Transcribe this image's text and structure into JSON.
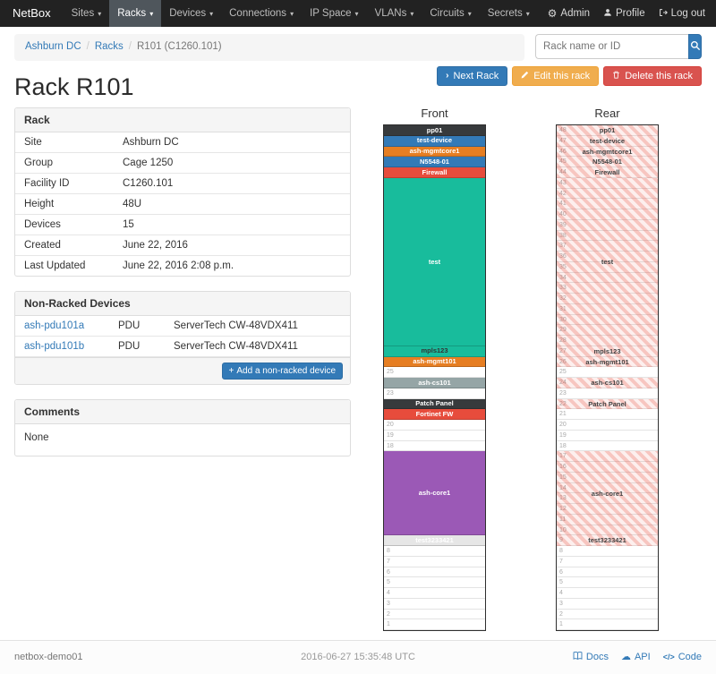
{
  "navbar": {
    "brand": "NetBox",
    "items": [
      {
        "label": "Sites",
        "active": false
      },
      {
        "label": "Racks",
        "active": true
      },
      {
        "label": "Devices",
        "active": false
      },
      {
        "label": "Connections",
        "active": false
      },
      {
        "label": "IP Space",
        "active": false
      },
      {
        "label": "VLANs",
        "active": false
      },
      {
        "label": "Circuits",
        "active": false
      },
      {
        "label": "Secrets",
        "active": false
      }
    ],
    "admin_label": "Admin",
    "profile_label": "Profile",
    "logout_label": "Log out"
  },
  "breadcrumb": {
    "items": [
      {
        "label": "Ashburn DC",
        "link": true
      },
      {
        "label": "Racks",
        "link": true
      },
      {
        "label": "R101 (C1260.101)",
        "link": false
      }
    ]
  },
  "search": {
    "placeholder": "Rack name or ID"
  },
  "actions": {
    "next_rack": "Next Rack",
    "edit": "Edit this rack",
    "delete": "Delete this rack"
  },
  "page_title": "Rack R101",
  "rack_panel": {
    "title": "Rack",
    "rows": [
      {
        "label": "Site",
        "value": "Ashburn DC",
        "link": true
      },
      {
        "label": "Group",
        "value": "Cage 1250",
        "link": true
      },
      {
        "label": "Facility ID",
        "value": "C1260.101",
        "link": false
      },
      {
        "label": "Height",
        "value": "48U",
        "link": false
      },
      {
        "label": "Devices",
        "value": "15",
        "link": true
      },
      {
        "label": "Created",
        "value": "June 22, 2016",
        "link": false
      },
      {
        "label": "Last Updated",
        "value": "June 22, 2016 2:08 p.m.",
        "link": false
      }
    ]
  },
  "non_racked": {
    "title": "Non-Racked Devices",
    "devices": [
      {
        "name": "ash-pdu101a",
        "role": "PDU",
        "type": "ServerTech CW-48VDX411"
      },
      {
        "name": "ash-pdu101b",
        "role": "PDU",
        "type": "ServerTech CW-48VDX411"
      }
    ],
    "add_button": "Add a non-racked device"
  },
  "comments": {
    "title": "Comments",
    "body": "None"
  },
  "elevations": {
    "units_total": 48,
    "front": {
      "title": "Front",
      "devices": [
        {
          "name": "pp01",
          "top_u": 48,
          "height": 1,
          "bg": "#373a3c",
          "fg": "#ffffff"
        },
        {
          "name": "test-device",
          "top_u": 47,
          "height": 1,
          "bg": "#337ab7",
          "fg": "#ffffff"
        },
        {
          "name": "ash-mgmtcore1",
          "top_u": 46,
          "height": 1,
          "bg": "#e67e22",
          "fg": "#ffffff"
        },
        {
          "name": "N5548-01",
          "top_u": 45,
          "height": 1,
          "bg": "#337ab7",
          "fg": "#ffffff"
        },
        {
          "name": "Firewall",
          "top_u": 44,
          "height": 1,
          "bg": "#e74c3c",
          "fg": "#ffffff"
        },
        {
          "name": "test",
          "top_u": 43,
          "height": 16,
          "bg": "#18bc9c",
          "fg": "#ffffff"
        },
        {
          "name": "mpls123",
          "top_u": 27,
          "height": 1,
          "bg": "#18bc9c",
          "fg": "#333333"
        },
        {
          "name": "ash-mgmt101",
          "top_u": 26,
          "height": 1,
          "bg": "#e67e22",
          "fg": "#ffffff"
        },
        {
          "name": "ash-cs101",
          "top_u": 24,
          "height": 1,
          "bg": "#95a5a6",
          "fg": "#ffffff"
        },
        {
          "name": "Patch Panel",
          "top_u": 22,
          "height": 1,
          "bg": "#373a3c",
          "fg": "#ffffff"
        },
        {
          "name": "Fortinet FW",
          "top_u": 21,
          "height": 1,
          "bg": "#e74c3c",
          "fg": "#ffffff"
        },
        {
          "name": "ash-core1",
          "top_u": 17,
          "height": 8,
          "bg": "#9b59b6",
          "fg": "#ffffff"
        },
        {
          "name": "test3233421",
          "top_u": 9,
          "height": 1,
          "bg": "#e6e6e6",
          "fg": "#ffffff"
        }
      ]
    },
    "rear": {
      "title": "Rear",
      "hatch_color": "#e74c3c",
      "devices": [
        {
          "name": "pp01",
          "top_u": 48,
          "height": 1
        },
        {
          "name": "test-device",
          "top_u": 47,
          "height": 1
        },
        {
          "name": "ash-mgmtcore1",
          "top_u": 46,
          "height": 1
        },
        {
          "name": "N5548-01",
          "top_u": 45,
          "height": 1
        },
        {
          "name": "Firewall",
          "top_u": 44,
          "height": 1
        },
        {
          "name": "test",
          "top_u": 43,
          "height": 16
        },
        {
          "name": "mpls123",
          "top_u": 27,
          "height": 1
        },
        {
          "name": "ash-mgmt101",
          "top_u": 26,
          "height": 1
        },
        {
          "name": "ash-cs101",
          "top_u": 24,
          "height": 1
        },
        {
          "name": "Patch Panel",
          "top_u": 22,
          "height": 1
        },
        {
          "name": "ash-core1",
          "top_u": 17,
          "height": 8
        },
        {
          "name": "test3233421",
          "top_u": 9,
          "height": 1
        }
      ]
    }
  },
  "colors": {
    "accent": "#337ab7",
    "warning": "#f0ad4e",
    "danger": "#d9534f",
    "navbar_bg": "#222222"
  },
  "footer": {
    "hostname": "netbox-demo01",
    "timestamp": "2016-06-27 15:35:48 UTC",
    "docs": "Docs",
    "api": "API",
    "code": "Code"
  }
}
